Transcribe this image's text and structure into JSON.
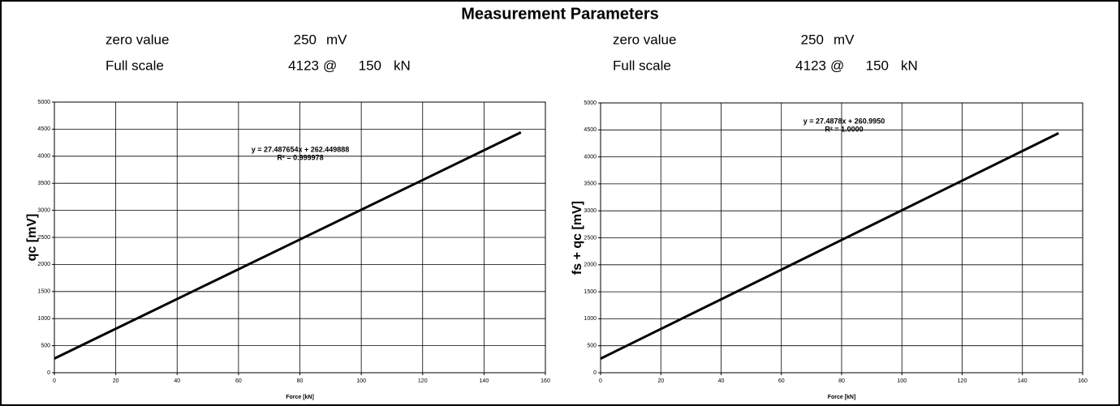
{
  "title": "Measurement Parameters",
  "parameters": [
    {
      "zero_label": "zero value",
      "zero_value": 250,
      "zero_unit": "mV",
      "full_label": "Full scale",
      "full_value": 4123,
      "at": "@",
      "full_force": 150,
      "force_unit": "kN"
    },
    {
      "zero_label": "zero value",
      "zero_value": 250,
      "zero_unit": "mV",
      "full_label": "Full scale",
      "full_value": 4123,
      "at": "@",
      "full_force": 150,
      "force_unit": "kN"
    }
  ],
  "chart_data": [
    {
      "type": "line",
      "x_label": "Force [kN]",
      "y_label": "qc [mV]",
      "annotations": [
        "y = 27.487654x + 262.449888",
        "R² = 0.999978"
      ],
      "x": [
        0,
        50,
        100,
        152
      ],
      "values": [
        262,
        1637,
        3011,
        4440
      ],
      "color": "#000000",
      "xlim": [
        0,
        160
      ],
      "xticks": [
        0,
        20,
        40,
        60,
        80,
        100,
        120,
        140,
        160
      ],
      "ylim": [
        0,
        5000
      ],
      "yticks": [
        0,
        500,
        1000,
        1500,
        2000,
        2500,
        3000,
        3500,
        4000,
        4500,
        5000
      ],
      "grid": true
    },
    {
      "type": "line",
      "x_label": "Force [kN]",
      "y_label": "fs + qc [mV]",
      "annotations": [
        "y = 27.4878x + 260.9950",
        "R² = 1.0000"
      ],
      "x": [
        0,
        50,
        100,
        152
      ],
      "values": [
        261,
        1635,
        3010,
        4439
      ],
      "color": "#000000",
      "xlim": [
        0,
        160
      ],
      "xticks": [
        0,
        20,
        40,
        60,
        80,
        100,
        120,
        140,
        160
      ],
      "ylim": [
        0,
        5000
      ],
      "yticks": [
        0,
        500,
        1000,
        1500,
        2000,
        2500,
        3000,
        3500,
        4000,
        4500,
        5000
      ],
      "grid": true
    }
  ]
}
